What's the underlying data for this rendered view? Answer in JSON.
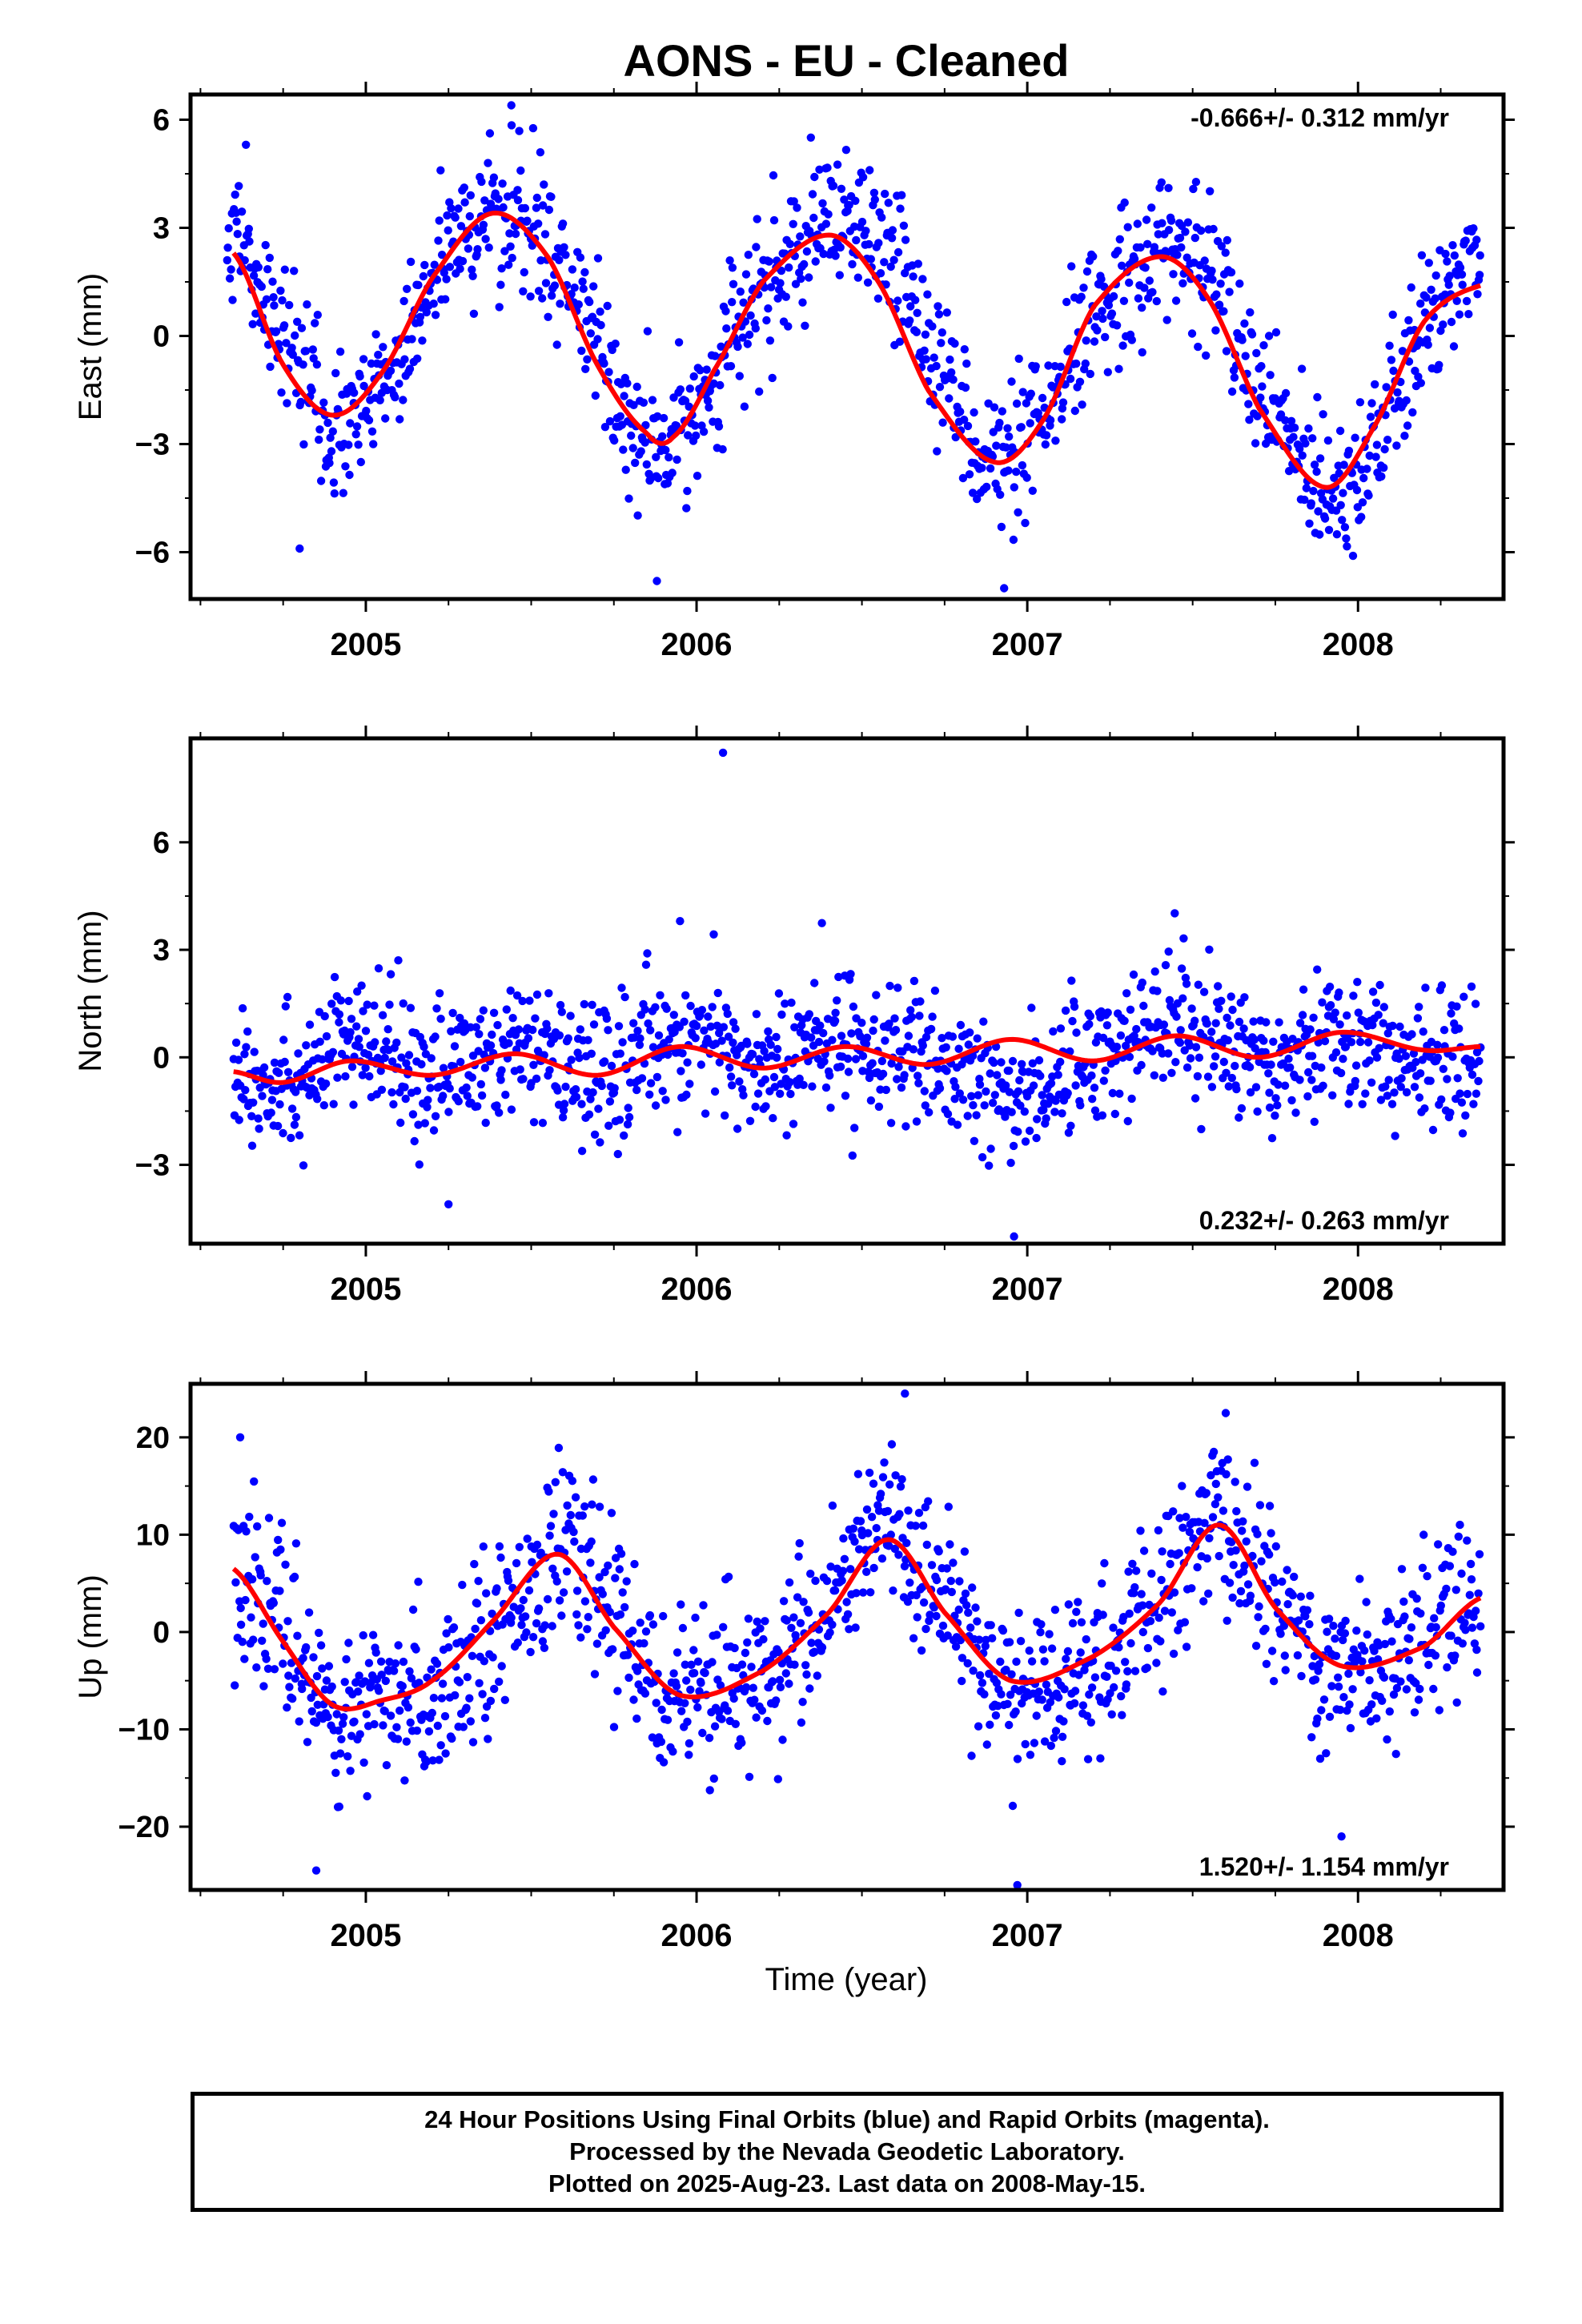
{
  "title": "AONS  - EU - Cleaned",
  "xlabel": "Time (year)",
  "footer": {
    "line1": "24 Hour Positions Using Final Orbits (blue) and Rapid Orbits (magenta).",
    "line2": "Processed by the Nevada Geodetic Laboratory.",
    "line3": "Plotted on 2025-Aug-23. Last data on 2008-May-15."
  },
  "colors": {
    "points": "#0000ff",
    "fit": "#ff0000",
    "frame": "#000000"
  },
  "chart_data": [
    {
      "type": "scatter",
      "id": "east",
      "ylabel": "East (mm)",
      "rate_text": "-0.666+/- 0.312 mm/yr",
      "rate_position": "top-right",
      "xlim": [
        2004.47,
        2008.44
      ],
      "ylim": [
        -7.3,
        6.7
      ],
      "yticks": [
        6,
        3,
        0,
        -3,
        -6
      ],
      "yticklabels": [
        "6",
        "3",
        "0",
        "−3",
        "−6"
      ],
      "xticks": [
        2005,
        2006,
        2007,
        2008
      ],
      "xticklabels": [
        "2005",
        "2006",
        "2007",
        "2008"
      ],
      "grid": false,
      "fit": {
        "x": [
          2004.6,
          2004.75,
          2004.9,
          2005.05,
          2005.2,
          2005.38,
          2005.55,
          2005.7,
          2005.85,
          2005.93,
          2006.05,
          2006.2,
          2006.4,
          2006.55,
          2006.7,
          2006.9,
          2007.05,
          2007.2,
          2007.4,
          2007.55,
          2007.7,
          2007.9,
          2008.05,
          2008.2,
          2008.37
        ],
        "y": [
          2.3,
          -0.8,
          -2.2,
          -1.0,
          1.6,
          3.4,
          2.2,
          -0.8,
          -2.7,
          -2.8,
          -1.0,
          1.5,
          2.8,
          1.5,
          -1.5,
          -3.5,
          -2.3,
          0.8,
          2.2,
          1.0,
          -2.0,
          -4.2,
          -2.5,
          0.4,
          1.4
        ]
      },
      "points": {
        "ref_x": [
          2004.58,
          2004.75,
          2004.9,
          2005.05,
          2005.2,
          2005.38,
          2005.55,
          2005.7,
          2005.85,
          2006.0,
          2006.15,
          2006.3,
          2006.45,
          2006.6,
          2006.75,
          2006.9,
          2007.05,
          2007.2,
          2007.38,
          2007.55,
          2007.7,
          2007.9,
          2008.05,
          2008.2,
          2008.37
        ],
        "ref_y": [
          3.2,
          0.0,
          -2.5,
          -1.5,
          1.6,
          3.4,
          2.5,
          -0.5,
          -3.2,
          -2.0,
          0.5,
          2.2,
          2.9,
          2.0,
          -1.0,
          -3.5,
          -2.5,
          0.5,
          2.3,
          1.8,
          -1.5,
          -4.0,
          -3.0,
          0.0,
          2.5
        ],
        "count": 1270,
        "spread": 1.0,
        "outliers": [
          [
            2005.44,
            6.4
          ],
          [
            2006.93,
            -7.0
          ],
          [
            2005.88,
            -6.8
          ],
          [
            2004.8,
            -5.9
          ]
        ]
      }
    },
    {
      "type": "scatter",
      "id": "north",
      "ylabel": "North (mm)",
      "rate_text": "0.232+/- 0.263 mm/yr",
      "rate_position": "bottom-right",
      "xlim": [
        2004.47,
        2008.44
      ],
      "ylim": [
        -5.2,
        8.9
      ],
      "yticks": [
        6,
        3,
        0,
        -3
      ],
      "yticklabels": [
        "6",
        "3",
        "0",
        "−3"
      ],
      "xticks": [
        2005,
        2006,
        2007,
        2008
      ],
      "xticklabels": [
        "2005",
        "2006",
        "2007",
        "2008"
      ],
      "grid": false,
      "fit": {
        "x": [
          2004.6,
          2004.75,
          2004.95,
          2005.2,
          2005.45,
          2005.7,
          2005.95,
          2006.2,
          2006.45,
          2006.7,
          2006.95,
          2007.2,
          2007.45,
          2007.7,
          2007.95,
          2008.2,
          2008.37
        ],
        "y": [
          -0.4,
          -0.7,
          -0.1,
          -0.5,
          0.1,
          -0.5,
          0.3,
          -0.3,
          0.3,
          -0.2,
          0.5,
          -0.1,
          0.6,
          0.0,
          0.7,
          0.2,
          0.3
        ],
        "wave": false
      },
      "points": {
        "ref_x": [
          2004.6,
          2004.75,
          2004.95,
          2005.2,
          2005.45,
          2005.7,
          2005.95,
          2006.2,
          2006.45,
          2006.7,
          2006.95,
          2007.2,
          2007.45,
          2007.7,
          2007.95,
          2008.2,
          2008.37
        ],
        "ref_y": [
          -0.2,
          -0.7,
          0.3,
          -0.4,
          0.1,
          -0.5,
          0.6,
          -0.3,
          0.5,
          -0.3,
          -1.0,
          0.0,
          1.0,
          0.0,
          0.6,
          -0.3,
          0.3
        ],
        "count": 1270,
        "spread": 0.95,
        "outliers": [
          [
            2006.08,
            8.5
          ],
          [
            2006.96,
            -5.0
          ],
          [
            2005.25,
            -4.1
          ],
          [
            2005.95,
            3.8
          ]
        ]
      }
    },
    {
      "type": "scatter",
      "id": "up",
      "ylabel": "Up (mm)",
      "rate_text": "1.520+/- 1.154 mm/yr",
      "rate_position": "bottom-right",
      "xlim": [
        2004.47,
        2008.44
      ],
      "ylim": [
        -26.5,
        25.5
      ],
      "yticks": [
        20,
        10,
        0,
        -10,
        -20
      ],
      "yticklabels": [
        "20",
        "10",
        "0",
        "−10",
        "−20"
      ],
      "xticks": [
        2005,
        2006,
        2007,
        2008
      ],
      "xticklabels": [
        "2005",
        "2006",
        "2007",
        "2008"
      ],
      "grid": false,
      "fit": {
        "x": [
          2004.6,
          2004.75,
          2004.9,
          2005.05,
          2005.2,
          2005.38,
          2005.58,
          2005.75,
          2005.95,
          2006.2,
          2006.4,
          2006.58,
          2006.75,
          2006.95,
          2007.2,
          2007.4,
          2007.58,
          2007.75,
          2007.95,
          2008.2,
          2008.37
        ],
        "y": [
          6.5,
          -1.0,
          -7.5,
          -7.0,
          -5.0,
          1.0,
          8.0,
          0.5,
          -6.5,
          -4.0,
          2.0,
          9.5,
          2.0,
          -5.0,
          -2.5,
          3.0,
          11.0,
          2.5,
          -3.5,
          -1.5,
          3.5
        ]
      },
      "points": {
        "ref_x": [
          2004.6,
          2004.75,
          2004.9,
          2005.05,
          2005.2,
          2005.38,
          2005.58,
          2005.75,
          2005.95,
          2006.2,
          2006.4,
          2006.58,
          2006.75,
          2006.95,
          2007.2,
          2007.4,
          2007.58,
          2007.75,
          2007.95,
          2008.2,
          2008.37
        ],
        "ref_y": [
          6.0,
          0.0,
          -8.0,
          -8.0,
          -6.0,
          0.0,
          8.0,
          2.0,
          -7.0,
          -4.0,
          2.0,
          11.0,
          3.0,
          -6.0,
          -4.0,
          3.0,
          11.0,
          3.0,
          -4.0,
          0.0,
          4.0
        ],
        "count": 1270,
        "spread": 4.2,
        "outliers": [
          [
            2004.62,
            20.0
          ],
          [
            2004.85,
            -24.5
          ],
          [
            2006.63,
            24.5
          ],
          [
            2006.97,
            -26.0
          ],
          [
            2007.6,
            22.5
          ],
          [
            2007.95,
            -21.0
          ]
        ]
      }
    }
  ]
}
